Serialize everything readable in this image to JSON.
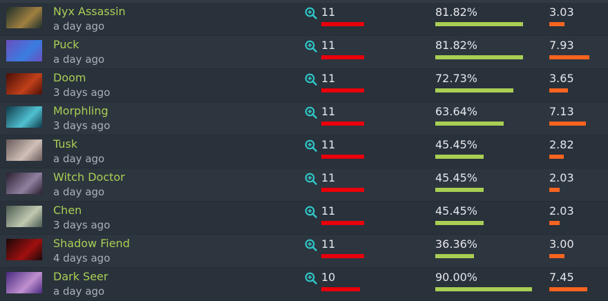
{
  "colors": {
    "hero_name": "#a9cf54",
    "matches_bar": "#e8000b",
    "winrate_bar": "#a9cf54",
    "kda_bar": "#f7641f",
    "zoom_icon": "#2fc7c7"
  },
  "scale": {
    "matches_max": 11,
    "winrate_max_percent": 100,
    "kda_max": 8
  },
  "heroes": [
    {
      "name": "Nyx Assassin",
      "last_played": "a day ago",
      "matches": "11",
      "winrate": "81.82%",
      "kda": "3.03",
      "icon": "nyx-assassin-portrait",
      "c1": "#1e2e2c",
      "c2": "#a08040"
    },
    {
      "name": "Puck",
      "last_played": "a day ago",
      "matches": "11",
      "winrate": "81.82%",
      "kda": "7.93",
      "icon": "puck-portrait",
      "c1": "#6a4fc0",
      "c2": "#3a7de0"
    },
    {
      "name": "Doom",
      "last_played": "3 days ago",
      "matches": "11",
      "winrate": "72.73%",
      "kda": "3.65",
      "icon": "doom-portrait",
      "c1": "#4a0e08",
      "c2": "#c0401a"
    },
    {
      "name": "Morphling",
      "last_played": "3 days ago",
      "matches": "11",
      "winrate": "63.64%",
      "kda": "7.13",
      "icon": "morphling-portrait",
      "c1": "#0e3a4a",
      "c2": "#50c0d0"
    },
    {
      "name": "Tusk",
      "last_played": "a day ago",
      "matches": "11",
      "winrate": "45.45%",
      "kda": "2.82",
      "icon": "tusk-portrait",
      "c1": "#6a5a5a",
      "c2": "#d0c0b8"
    },
    {
      "name": "Witch Doctor",
      "last_played": "a day ago",
      "matches": "11",
      "winrate": "45.45%",
      "kda": "2.03",
      "icon": "witch-doctor-portrait",
      "c1": "#2a2030",
      "c2": "#9080a0"
    },
    {
      "name": "Chen",
      "last_played": "3 days ago",
      "matches": "11",
      "winrate": "45.45%",
      "kda": "2.03",
      "icon": "chen-portrait",
      "c1": "#4a5a50",
      "c2": "#c0c8b0"
    },
    {
      "name": "Shadow Fiend",
      "last_played": "4 days ago",
      "matches": "11",
      "winrate": "36.36%",
      "kda": "3.00",
      "icon": "shadow-fiend-portrait",
      "c1": "#1a0808",
      "c2": "#a01010"
    },
    {
      "name": "Dark Seer",
      "last_played": "a day ago",
      "matches": "10",
      "winrate": "90.00%",
      "kda": "7.45",
      "icon": "dark-seer-portrait",
      "c1": "#4a2a80",
      "c2": "#c090d0"
    }
  ]
}
